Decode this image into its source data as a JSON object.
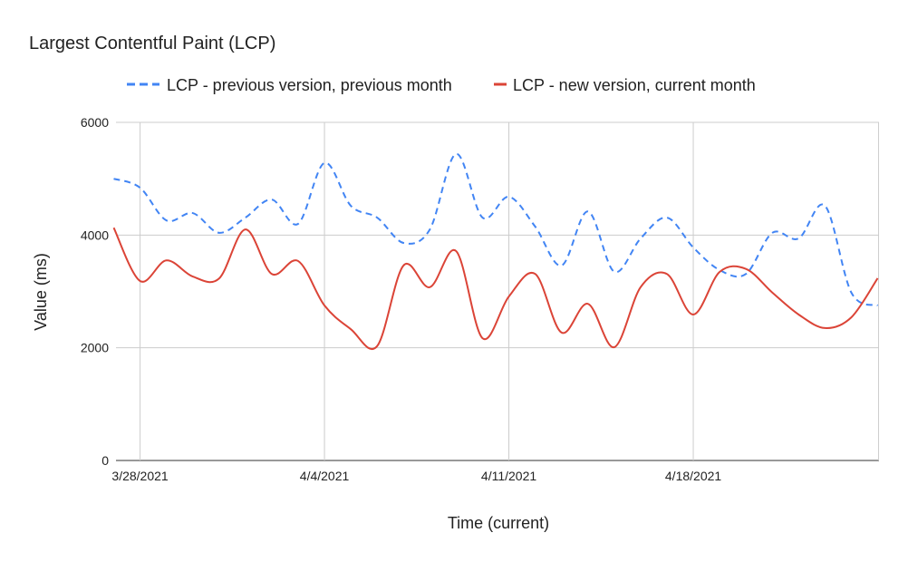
{
  "chart_data": {
    "type": "line",
    "title": "Largest Contentful Paint (LCP)",
    "xlabel": "Time (current)",
    "ylabel": "Value (ms)",
    "ylim": [
      0,
      6000
    ],
    "yticks": [
      "0",
      "2000",
      "4000",
      "6000"
    ],
    "xticks": [
      "3/28/2021",
      "4/4/2021",
      "4/11/2021",
      "4/18/2021"
    ],
    "x_start": "3/27/2021",
    "x_end": "4/25/2021",
    "grid": true,
    "legend": "top",
    "series": [
      {
        "name": "LCP - previous version, previous month",
        "color": "#4285f4",
        "style": "dashed",
        "values": [
          5000,
          4840,
          4260,
          4390,
          4040,
          4310,
          4630,
          4200,
          5280,
          4520,
          4310,
          3860,
          4100,
          5440,
          4310,
          4680,
          4150,
          3460,
          4420,
          3350,
          3940,
          4310,
          3780,
          3380,
          3310,
          4040,
          3940,
          4520,
          2980,
          2750
        ]
      },
      {
        "name": "LCP - new version, current month",
        "color": "#db4437",
        "style": "solid",
        "values": [
          4130,
          3185,
          3550,
          3265,
          3230,
          4100,
          3310,
          3540,
          2750,
          2330,
          2030,
          3460,
          3075,
          3715,
          2170,
          2910,
          3310,
          2270,
          2780,
          2010,
          3075,
          3310,
          2590,
          3345,
          3400,
          2980,
          2590,
          2350,
          2540,
          3235
        ]
      }
    ]
  }
}
